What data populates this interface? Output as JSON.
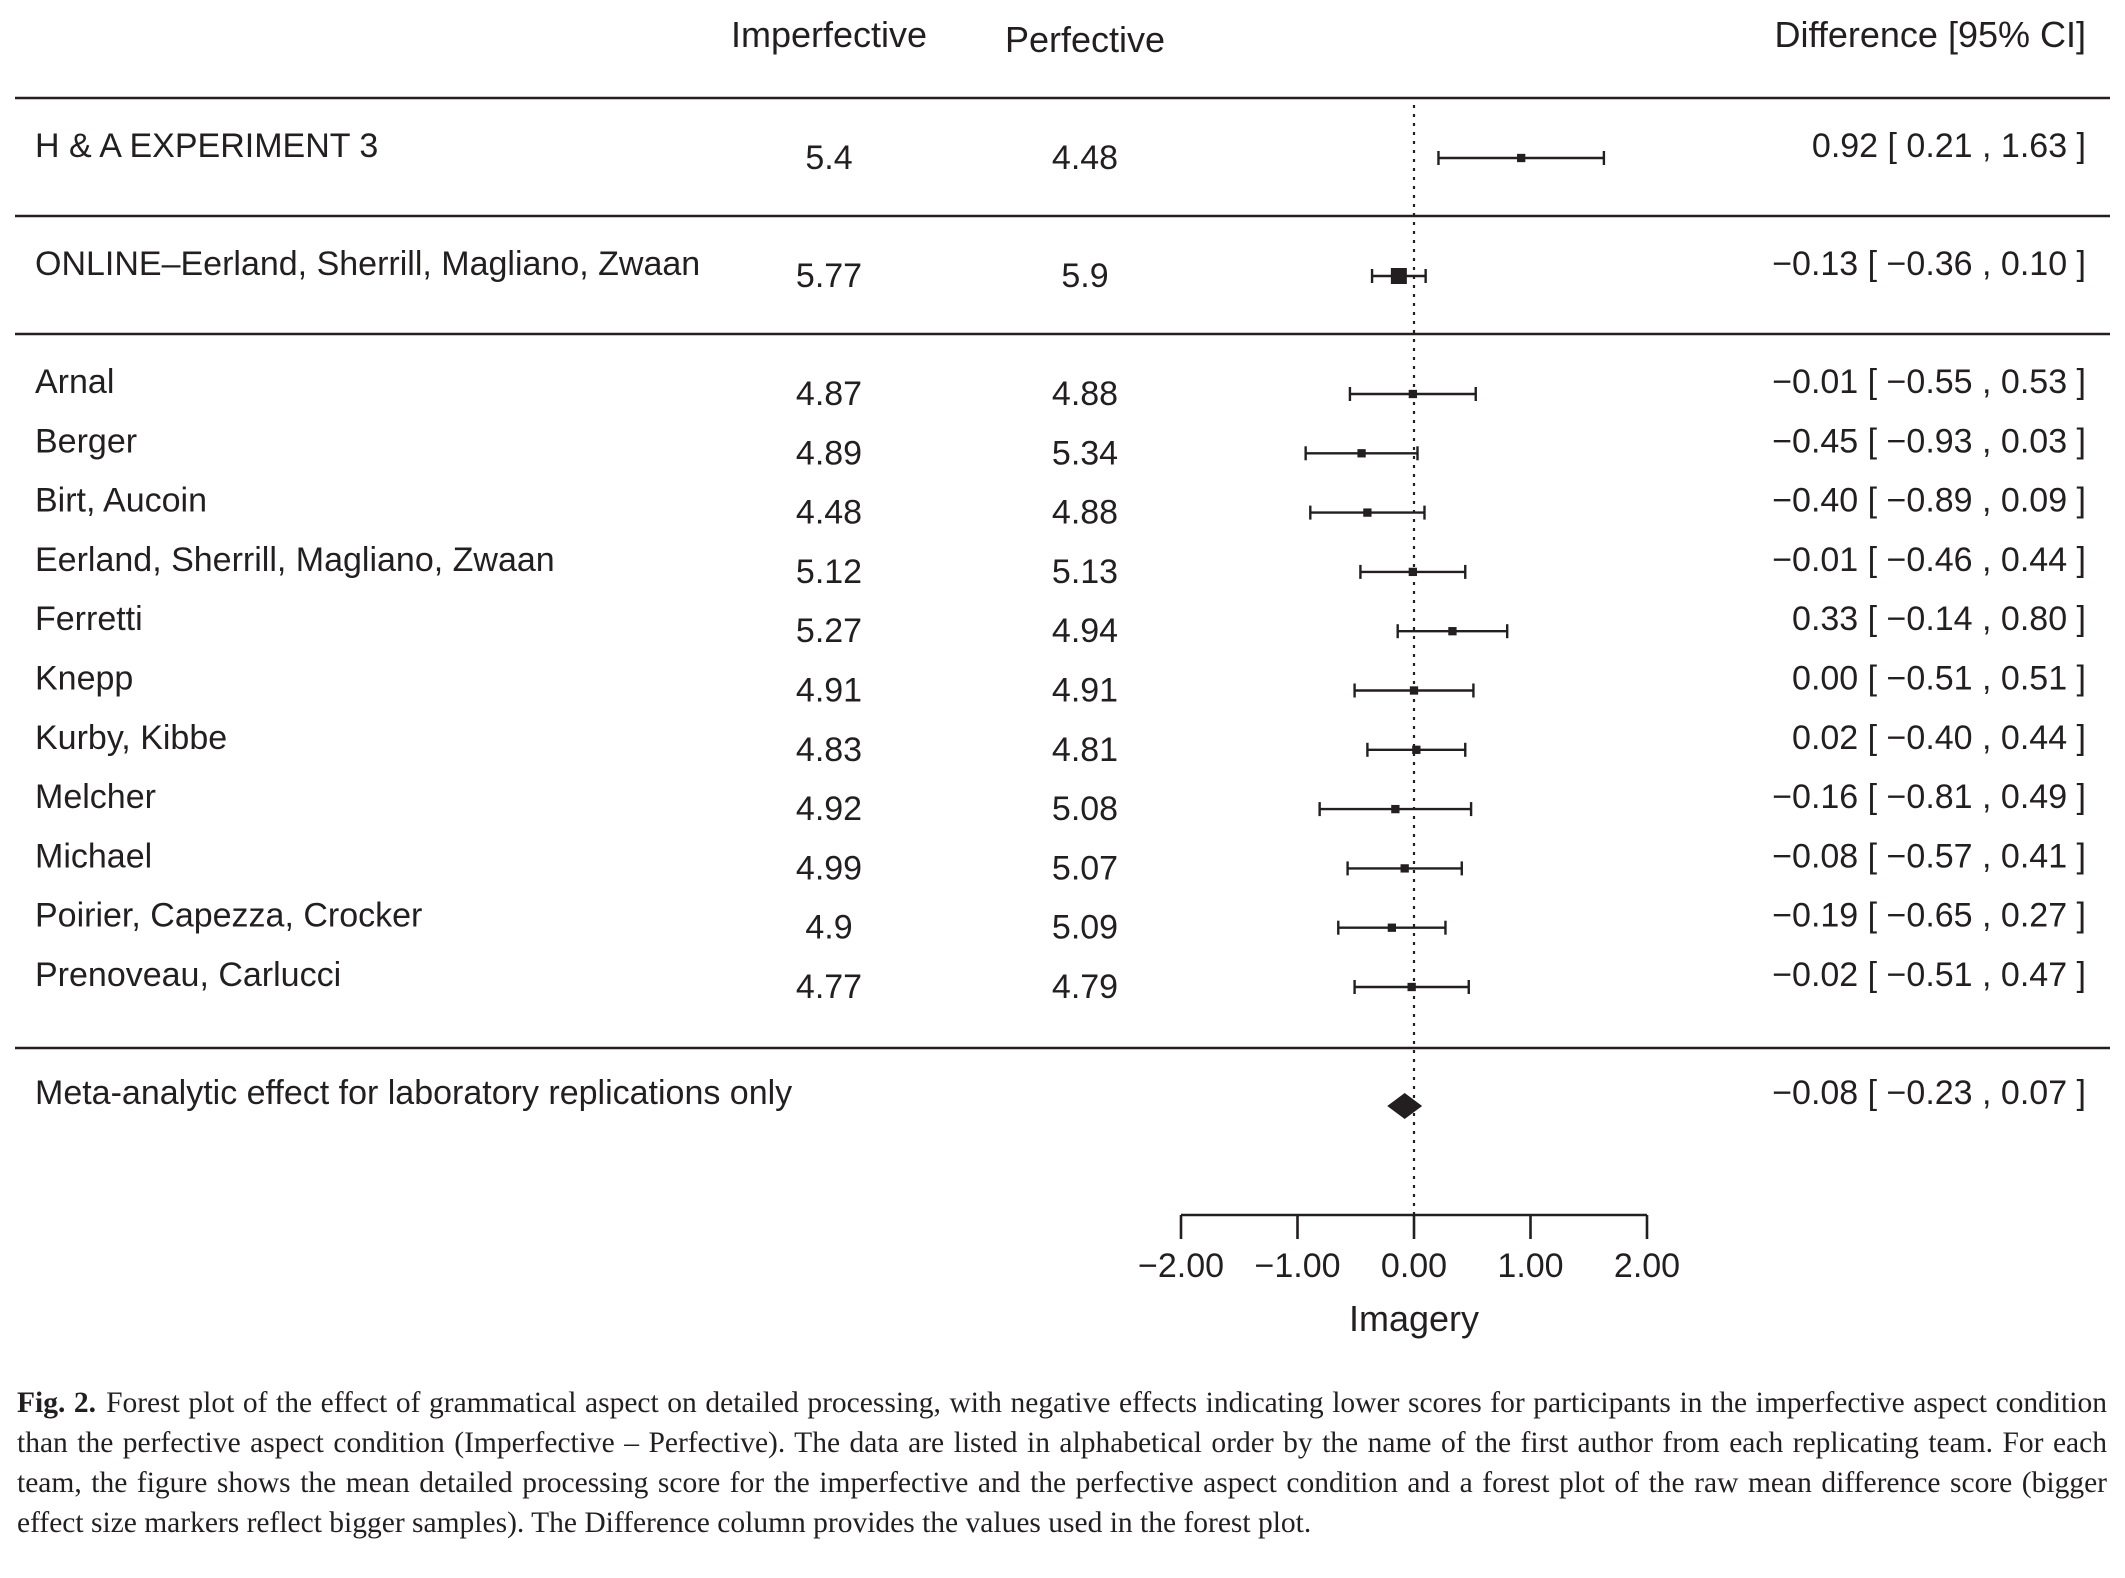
{
  "chart_data": {
    "type": "forest",
    "columns": {
      "study": "",
      "imperfective": "Imperfective",
      "perfective": "Perfective",
      "difference": "Difference [95% CI]"
    },
    "groups": [
      {
        "rows": [
          {
            "study": "H & A EXPERIMENT 3",
            "imperfective": "5.4",
            "perfective": "4.48",
            "estimate": 0.92,
            "ci_low": 0.21,
            "ci_high": 1.63,
            "difference_text": "0.92 [  0.21 , 1.63 ]",
            "marker": "square",
            "marker_size": 0.3
          }
        ]
      },
      {
        "rows": [
          {
            "study": "ONLINE–Eerland, Sherrill, Magliano, Zwaan",
            "imperfective": "5.77",
            "perfective": "5.9",
            "estimate": -0.13,
            "ci_low": -0.36,
            "ci_high": 0.1,
            "difference_text": "−0.13 [ −0.36 , 0.10 ]",
            "marker": "square",
            "marker_size": 1.0
          }
        ]
      },
      {
        "rows": [
          {
            "study": "Arnal",
            "imperfective": "4.87",
            "perfective": "4.88",
            "estimate": -0.01,
            "ci_low": -0.55,
            "ci_high": 0.53,
            "difference_text": "−0.01 [ −0.55 , 0.53 ]",
            "marker": "square",
            "marker_size": 0.3
          },
          {
            "study": "Berger",
            "imperfective": "4.89",
            "perfective": "5.34",
            "estimate": -0.45,
            "ci_low": -0.93,
            "ci_high": 0.03,
            "difference_text": "−0.45 [ −0.93 , 0.03 ]",
            "marker": "square",
            "marker_size": 0.3
          },
          {
            "study": "Birt, Aucoin",
            "imperfective": "4.48",
            "perfective": "4.88",
            "estimate": -0.4,
            "ci_low": -0.89,
            "ci_high": 0.09,
            "difference_text": "−0.40 [ −0.89 , 0.09 ]",
            "marker": "square",
            "marker_size": 0.3
          },
          {
            "study": "Eerland, Sherrill, Magliano, Zwaan",
            "imperfective": "5.12",
            "perfective": "5.13",
            "estimate": -0.01,
            "ci_low": -0.46,
            "ci_high": 0.44,
            "difference_text": "−0.01 [ −0.46 , 0.44 ]",
            "marker": "square",
            "marker_size": 0.3
          },
          {
            "study": "Ferretti",
            "imperfective": "5.27",
            "perfective": "4.94",
            "estimate": 0.33,
            "ci_low": -0.14,
            "ci_high": 0.8,
            "difference_text": "0.33 [ −0.14 , 0.80 ]",
            "marker": "square",
            "marker_size": 0.3
          },
          {
            "study": "Knepp",
            "imperfective": "4.91",
            "perfective": "4.91",
            "estimate": 0.0,
            "ci_low": -0.51,
            "ci_high": 0.51,
            "difference_text": "0.00 [ −0.51 , 0.51 ]",
            "marker": "square",
            "marker_size": 0.3
          },
          {
            "study": "Kurby, Kibbe",
            "imperfective": "4.83",
            "perfective": "4.81",
            "estimate": 0.02,
            "ci_low": -0.4,
            "ci_high": 0.44,
            "difference_text": "0.02 [ −0.40 , 0.44 ]",
            "marker": "square",
            "marker_size": 0.3
          },
          {
            "study": "Melcher",
            "imperfective": "4.92",
            "perfective": "5.08",
            "estimate": -0.16,
            "ci_low": -0.81,
            "ci_high": 0.49,
            "difference_text": "−0.16 [ −0.81 , 0.49 ]",
            "marker": "square",
            "marker_size": 0.3
          },
          {
            "study": "Michael",
            "imperfective": "4.99",
            "perfective": "5.07",
            "estimate": -0.08,
            "ci_low": -0.57,
            "ci_high": 0.41,
            "difference_text": "−0.08 [ −0.57 , 0.41 ]",
            "marker": "square",
            "marker_size": 0.3
          },
          {
            "study": "Poirier, Capezza, Crocker",
            "imperfective": "4.9",
            "perfective": "5.09",
            "estimate": -0.19,
            "ci_low": -0.65,
            "ci_high": 0.27,
            "difference_text": "−0.19 [ −0.65 , 0.27 ]",
            "marker": "square",
            "marker_size": 0.3
          },
          {
            "study": "Prenoveau, Carlucci",
            "imperfective": "4.77",
            "perfective": "4.79",
            "estimate": -0.02,
            "ci_low": -0.51,
            "ci_high": 0.47,
            "difference_text": "−0.02 [ −0.51 , 0.47 ]",
            "marker": "square",
            "marker_size": 0.3
          }
        ]
      }
    ],
    "summary": {
      "study": "Meta-analytic effect for laboratory replications only",
      "estimate": -0.08,
      "ci_low": -0.23,
      "ci_high": 0.07,
      "difference_text": "−0.08 [ −0.23 , 0.07 ]",
      "marker": "diamond"
    },
    "x_axis": {
      "label": "Imagery",
      "range": [
        -2,
        2
      ],
      "ticks": [
        -2,
        -1,
        0,
        1,
        2
      ],
      "tick_labels": [
        "−2.00",
        "−1.00",
        "0.00",
        "1.00",
        "2.00"
      ],
      "reference_line": 0
    },
    "colors": {
      "ink": "#231f20"
    }
  },
  "caption": {
    "label": "Fig. 2.",
    "text": "Forest plot of the effect of grammatical aspect on detailed processing, with negative effects indicating lower scores for participants in the imperfective aspect condition than the perfective aspect condition (Imperfective – Perfective). The data are listed in alphabetical order by the name of the first author from each replicating team. For each team, the figure shows the mean detailed processing score for the imperfective and the perfective aspect condition and a forest plot of the raw mean difference score (bigger effect size markers reflect bigger samples). The Difference column provides the values used in the forest plot."
  }
}
